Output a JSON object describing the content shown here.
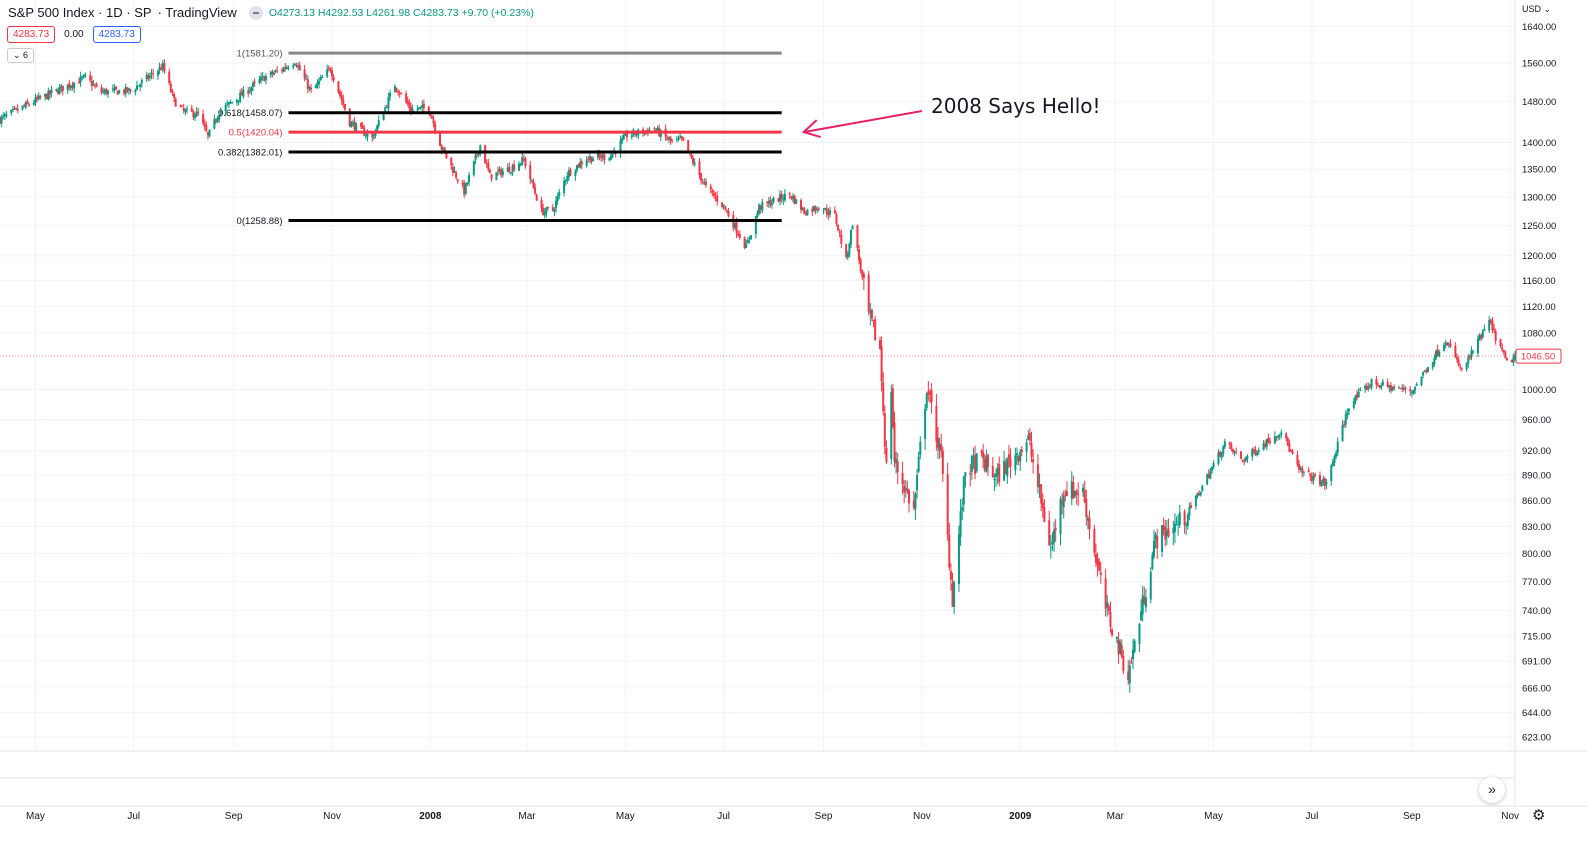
{
  "header": {
    "symbol": "S&P 500 Index · 1D · SP",
    "source": "· TradingView",
    "ohlc": "O4273.13 H4292.53 L4261.98 C4283.73 +9.70 (+0.23%)"
  },
  "quote": {
    "bid": "4283.73",
    "spread": "0.00",
    "ask": "4283.73"
  },
  "indicators_toggle": "⌄ 6",
  "currency": "USD ⌄",
  "scroll_button": "»",
  "settings_icon": "⚙",
  "colors": {
    "up": "#089981",
    "down": "#f23645",
    "fib": "#000000",
    "fib_mid": "#f23645",
    "fib_top": "#888888",
    "annotation": "#e91e63",
    "grid": "#f0f3fa"
  },
  "chart_data": {
    "type": "candlestick",
    "price_scale": "log",
    "ylim": [
      612,
      1700
    ],
    "y_ticks": [
      1640,
      1560,
      1480,
      1400,
      1350,
      1300,
      1250,
      1200,
      1160,
      1120,
      1080,
      1000,
      960,
      920,
      890,
      860,
      830,
      800,
      770,
      740,
      715,
      691,
      666,
      644,
      623
    ],
    "y_tick_labels": [
      "1640.00",
      "1560.00",
      "1480.00",
      "1400.00",
      "1350.00",
      "1300.00",
      "1250.00",
      "1200.00",
      "1160.00",
      "1120.00",
      "1080.00",
      "1000.00",
      "960.00",
      "920.00",
      "890.00",
      "860.00",
      "830.00",
      "800.00",
      "770.00",
      "740.00",
      "715.00",
      "691.00",
      "666.00",
      "644.00",
      "623.00"
    ],
    "x_range": [
      "2007-04-09",
      "2009-11-04"
    ],
    "x_ticks": [
      {
        "date": "2007-05-01",
        "label": "May",
        "bold": false
      },
      {
        "date": "2007-07-01",
        "label": "Jul",
        "bold": false
      },
      {
        "date": "2007-09-01",
        "label": "Sep",
        "bold": false
      },
      {
        "date": "2007-11-01",
        "label": "Nov",
        "bold": false
      },
      {
        "date": "2008-01-01",
        "label": "2008",
        "bold": true
      },
      {
        "date": "2008-03-01",
        "label": "Mar",
        "bold": false
      },
      {
        "date": "2008-05-01",
        "label": "May",
        "bold": false
      },
      {
        "date": "2008-07-01",
        "label": "Jul",
        "bold": false
      },
      {
        "date": "2008-09-01",
        "label": "Sep",
        "bold": false
      },
      {
        "date": "2008-11-01",
        "label": "Nov",
        "bold": false
      },
      {
        "date": "2009-01-01",
        "label": "2009",
        "bold": true
      },
      {
        "date": "2009-03-01",
        "label": "Mar",
        "bold": false
      },
      {
        "date": "2009-05-01",
        "label": "May",
        "bold": false
      },
      {
        "date": "2009-07-01",
        "label": "Jul",
        "bold": false
      },
      {
        "date": "2009-09-01",
        "label": "Sep",
        "bold": false
      },
      {
        "date": "2009-11-01",
        "label": "Nov",
        "bold": false
      }
    ],
    "price_path": [
      [
        "2007-04-09",
        1445
      ],
      [
        "2007-05-01",
        1482
      ],
      [
        "2007-06-01",
        1530
      ],
      [
        "2007-06-10",
        1500
      ],
      [
        "2007-06-29",
        1502
      ],
      [
        "2007-07-19",
        1553
      ],
      [
        "2007-07-26",
        1482
      ],
      [
        "2007-08-01",
        1460
      ],
      [
        "2007-08-10",
        1455
      ],
      [
        "2007-08-16",
        1411
      ],
      [
        "2007-08-23",
        1460
      ],
      [
        "2007-09-04",
        1489
      ],
      [
        "2007-09-19",
        1528
      ],
      [
        "2007-10-01",
        1547
      ],
      [
        "2007-10-09",
        1565
      ],
      [
        "2007-10-19",
        1500
      ],
      [
        "2007-10-31",
        1549
      ],
      [
        "2007-11-12",
        1439
      ],
      [
        "2007-11-26",
        1408
      ],
      [
        "2007-12-10",
        1515
      ],
      [
        "2007-12-20",
        1464
      ],
      [
        "2007-12-31",
        1468
      ],
      [
        "2008-01-08",
        1390
      ],
      [
        "2008-01-22",
        1310
      ],
      [
        "2008-02-01",
        1395
      ],
      [
        "2008-02-07",
        1337
      ],
      [
        "2008-02-20",
        1352
      ],
      [
        "2008-02-28",
        1368
      ],
      [
        "2008-03-10",
        1274
      ],
      [
        "2008-03-17",
        1277
      ],
      [
        "2008-03-26",
        1342
      ],
      [
        "2008-04-07",
        1370
      ],
      [
        "2008-04-22",
        1375
      ],
      [
        "2008-05-02",
        1414
      ],
      [
        "2008-05-19",
        1426
      ],
      [
        "2008-05-30",
        1400
      ],
      [
        "2008-06-05",
        1405
      ],
      [
        "2008-06-20",
        1317
      ],
      [
        "2008-07-01",
        1284
      ],
      [
        "2008-07-15",
        1214
      ],
      [
        "2008-07-23",
        1282
      ],
      [
        "2008-08-11",
        1305
      ],
      [
        "2008-08-20",
        1274
      ],
      [
        "2008-08-29",
        1283
      ],
      [
        "2008-09-08",
        1267
      ],
      [
        "2008-09-15",
        1192
      ],
      [
        "2008-09-19",
        1255
      ],
      [
        "2008-09-29",
        1106
      ],
      [
        "2008-10-06",
        1056
      ],
      [
        "2008-10-10",
        899
      ],
      [
        "2008-10-13",
        1003
      ],
      [
        "2008-10-15",
        907
      ],
      [
        "2008-10-27",
        848
      ],
      [
        "2008-11-04",
        1005
      ],
      [
        "2008-11-13",
        911
      ],
      [
        "2008-11-20",
        752
      ],
      [
        "2008-11-28",
        896
      ],
      [
        "2008-12-08",
        909
      ],
      [
        "2008-12-17",
        887
      ],
      [
        "2009-01-06",
        934
      ],
      [
        "2009-01-20",
        805
      ],
      [
        "2009-01-28",
        874
      ],
      [
        "2009-02-09",
        869
      ],
      [
        "2009-02-23",
        743
      ],
      [
        "2009-03-09",
        677
      ],
      [
        "2009-03-26",
        815
      ],
      [
        "2009-04-14",
        841
      ],
      [
        "2009-05-08",
        929
      ],
      [
        "2009-05-19",
        908
      ],
      [
        "2009-06-12",
        946
      ],
      [
        "2009-06-23",
        895
      ],
      [
        "2009-07-10",
        879
      ],
      [
        "2009-07-24",
        979
      ],
      [
        "2009-08-07",
        1010
      ],
      [
        "2009-08-20",
        1002
      ],
      [
        "2009-09-01",
        998
      ],
      [
        "2009-09-22",
        1071
      ],
      [
        "2009-10-02",
        1025
      ],
      [
        "2009-10-19",
        1097
      ],
      [
        "2009-10-30",
        1036
      ],
      [
        "2009-11-04",
        1046
      ]
    ],
    "fib_retracement": {
      "start": "2007-10-05",
      "end": "2008-08-06",
      "levels": [
        {
          "label": "1(1581.20)",
          "price": 1581.2,
          "style": "top"
        },
        {
          "label": "0.618(1458.07)",
          "price": 1458.07,
          "style": "normal"
        },
        {
          "label": "0.5(1420.04)",
          "price": 1420.04,
          "style": "mid"
        },
        {
          "label": "0.382(1382.01)",
          "price": 1382.01,
          "style": "normal"
        },
        {
          "label": "0(1258.88)",
          "price": 1258.88,
          "style": "normal"
        }
      ]
    },
    "annotation": {
      "text": "2008 Says Hello!",
      "points_to": {
        "date": "2008-08-06",
        "price": 1420.04
      }
    },
    "last_price": {
      "label": "1046.50",
      "price": 1046.5
    }
  }
}
